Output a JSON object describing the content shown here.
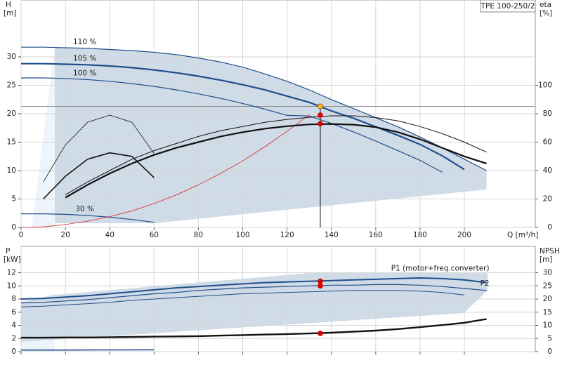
{
  "chart_data": [
    {
      "type": "line",
      "y_label": "H",
      "y_unit": "[m]",
      "y2_label": "eta",
      "y2_unit": "[%]",
      "x_label": "Q [m³/h]",
      "model": "TPE 100-250/2",
      "x": [
        0,
        10,
        20,
        30,
        40,
        50,
        60,
        70,
        80,
        90,
        100,
        110,
        120,
        130,
        140,
        150,
        160,
        170,
        180,
        190,
        200,
        210
      ],
      "xlim": [
        0,
        232
      ],
      "ylim": [
        0,
        40
      ],
      "y2lim": [
        0,
        160
      ],
      "xticks": [
        0,
        20,
        40,
        60,
        80,
        100,
        120,
        140,
        160,
        180,
        200
      ],
      "yticks": [
        0,
        5,
        10,
        15,
        20,
        25,
        30
      ],
      "y2ticks": [
        0,
        20,
        40,
        60,
        80,
        100
      ],
      "xtick_labels": true,
      "grid": true,
      "series": [
        {
          "name": "110 %",
          "color": "#1f4e8c",
          "width": 1.2,
          "values": [
            31.7,
            31.7,
            31.6,
            31.5,
            31.3,
            31.1,
            30.8,
            30.4,
            29.8,
            29.1,
            28.2,
            27.0,
            25.7,
            24.2,
            22.5,
            20.9,
            19.3,
            17.7,
            15.9,
            14.0,
            12.0,
            10.0
          ]
        },
        {
          "name": "105 %",
          "color": "#1f4e8c",
          "width": 2.2,
          "values": [
            28.8,
            28.8,
            28.7,
            28.6,
            28.4,
            28.1,
            27.7,
            27.2,
            26.6,
            25.9,
            25.1,
            24.2,
            23.1,
            22.0,
            20.5,
            19.2,
            17.7,
            16.2,
            14.6,
            12.6,
            10.2,
            null
          ]
        },
        {
          "name": "100 %",
          "color": "#1f4e8c",
          "width": 1.2,
          "values": [
            26.3,
            26.3,
            26.2,
            26.0,
            25.7,
            25.3,
            24.8,
            24.2,
            23.5,
            22.7,
            21.8,
            20.8,
            19.7,
            19.6,
            18.3,
            16.8,
            15.2,
            13.5,
            11.8,
            9.7,
            null,
            null
          ]
        },
        {
          "name": "30 %",
          "color": "#1f4e8c",
          "width": 1.2,
          "values": [
            2.4,
            2.4,
            2.3,
            2.1,
            1.8,
            1.4,
            0.9,
            null,
            null,
            null,
            null,
            null,
            null,
            null,
            null,
            null,
            null,
            null,
            null,
            null,
            null,
            null
          ]
        },
        {
          "color": "#e02020",
          "width": 0.8,
          "values": [
            0,
            0.1,
            0.5,
            1.1,
            1.9,
            2.9,
            4.2,
            5.7,
            7.5,
            9.5,
            11.7,
            14.2,
            16.9,
            19.8,
            null,
            null,
            null,
            null,
            null,
            null,
            null,
            null
          ]
        },
        {
          "color": "#111111",
          "width": 0.8,
          "axis": "y2",
          "values": [
            null,
            32,
            58,
            74,
            79,
            74,
            52,
            null,
            null,
            null,
            null,
            null,
            null,
            null,
            null,
            null,
            null,
            null,
            null,
            null,
            null,
            null
          ]
        },
        {
          "color": "#111111",
          "width": 1.6,
          "axis": "y2",
          "values": [
            null,
            20,
            36,
            48,
            52.5,
            50,
            35,
            null,
            null,
            null,
            null,
            null,
            null,
            null,
            null,
            null,
            null,
            null,
            null,
            null,
            null,
            null
          ]
        },
        {
          "color": "#111111",
          "width": 1.0,
          "axis": "y2",
          "values": [
            null,
            null,
            23,
            32,
            40,
            48,
            54,
            59,
            64,
            68,
            71,
            74,
            76,
            77.5,
            78.5,
            78.5,
            77.3,
            75,
            71,
            66,
            60,
            53
          ]
        },
        {
          "color": "#111111",
          "width": 2.2,
          "axis": "y2",
          "values": [
            null,
            null,
            21,
            30,
            38,
            45,
            51,
            56,
            60,
            64,
            67,
            69.5,
            71.2,
            72.5,
            72.8,
            72.3,
            70.5,
            67,
            62,
            56,
            50,
            45
          ]
        }
      ],
      "markers": [
        {
          "x": 135,
          "y": 21.3,
          "color": "#f5c518"
        },
        {
          "x": 135,
          "y": 79,
          "axis": "y2",
          "color": "#e00000"
        },
        {
          "x": 135,
          "y": 73,
          "axis": "y2",
          "color": "#e00000"
        }
      ]
    },
    {
      "type": "line",
      "y_label": "P",
      "y_unit": "[kW]",
      "y2_label": "NPSH",
      "y2_unit": "[m]",
      "x": [
        0,
        10,
        20,
        30,
        40,
        50,
        60,
        70,
        80,
        90,
        100,
        110,
        120,
        130,
        140,
        150,
        160,
        170,
        180,
        190,
        200,
        210
      ],
      "xlim": [
        0,
        232
      ],
      "ylim": [
        0,
        16
      ],
      "y2lim": [
        0,
        40
      ],
      "xticks": [
        0,
        20,
        40,
        60,
        80,
        100,
        120,
        140,
        160,
        180,
        200
      ],
      "yticks": [
        0,
        2,
        4,
        6,
        8,
        10,
        12
      ],
      "y2ticks": [
        0,
        5,
        10,
        15,
        20,
        25,
        30
      ],
      "xtick_labels": false,
      "grid": true,
      "series": [
        {
          "name": "P1 (motor+freq.converter)",
          "color": "#1f4e8c",
          "width": 2.0,
          "values": [
            8.0,
            8.1,
            8.3,
            8.5,
            8.8,
            9.1,
            9.4,
            9.7,
            9.9,
            10.1,
            10.3,
            10.5,
            10.6,
            10.7,
            10.8,
            10.9,
            11.0,
            11.1,
            11.2,
            11.1,
            10.9,
            10.5
          ]
        },
        {
          "name": "P2",
          "color": "#1f4e8c",
          "width": 1.2,
          "values": [
            7.4,
            7.5,
            7.7,
            7.9,
            8.2,
            8.5,
            8.8,
            9.0,
            9.3,
            9.5,
            9.7,
            9.8,
            9.9,
            10.0,
            10.1,
            10.1,
            10.2,
            10.2,
            10.1,
            9.9,
            9.6,
            9.3
          ]
        },
        {
          "color": "#1f4e8c",
          "width": 1.0,
          "values": [
            6.8,
            6.9,
            7.1,
            7.3,
            7.5,
            7.8,
            8.0,
            8.2,
            8.4,
            8.6,
            8.8,
            8.9,
            9.0,
            9.1,
            9.2,
            9.3,
            9.3,
            9.3,
            9.2,
            9.0,
            8.6,
            null
          ]
        },
        {
          "color": "#1f4e8c",
          "width": 1.6,
          "values": [
            0.25,
            0.25,
            0.25,
            0.26,
            0.27,
            0.28,
            0.29,
            null,
            null,
            null,
            null,
            null,
            null,
            null,
            null,
            null,
            null,
            null,
            null,
            null,
            null,
            null
          ]
        },
        {
          "color": "#111111",
          "width": 2.4,
          "axis": "y2",
          "values": [
            5.3,
            5.3,
            5.4,
            5.4,
            5.5,
            5.6,
            5.7,
            5.8,
            5.9,
            6.1,
            6.3,
            6.5,
            6.7,
            6.9,
            7.2,
            7.6,
            8.0,
            8.6,
            9.3,
            10.1,
            11.0,
            12.4
          ]
        }
      ],
      "markers": [
        {
          "x": 135,
          "y": 10.7,
          "color": "#e00000"
        },
        {
          "x": 135,
          "y": 10.0,
          "color": "#e00000"
        },
        {
          "x": 135,
          "y": 6.95,
          "axis": "y2",
          "color": "#e00000"
        }
      ]
    }
  ]
}
